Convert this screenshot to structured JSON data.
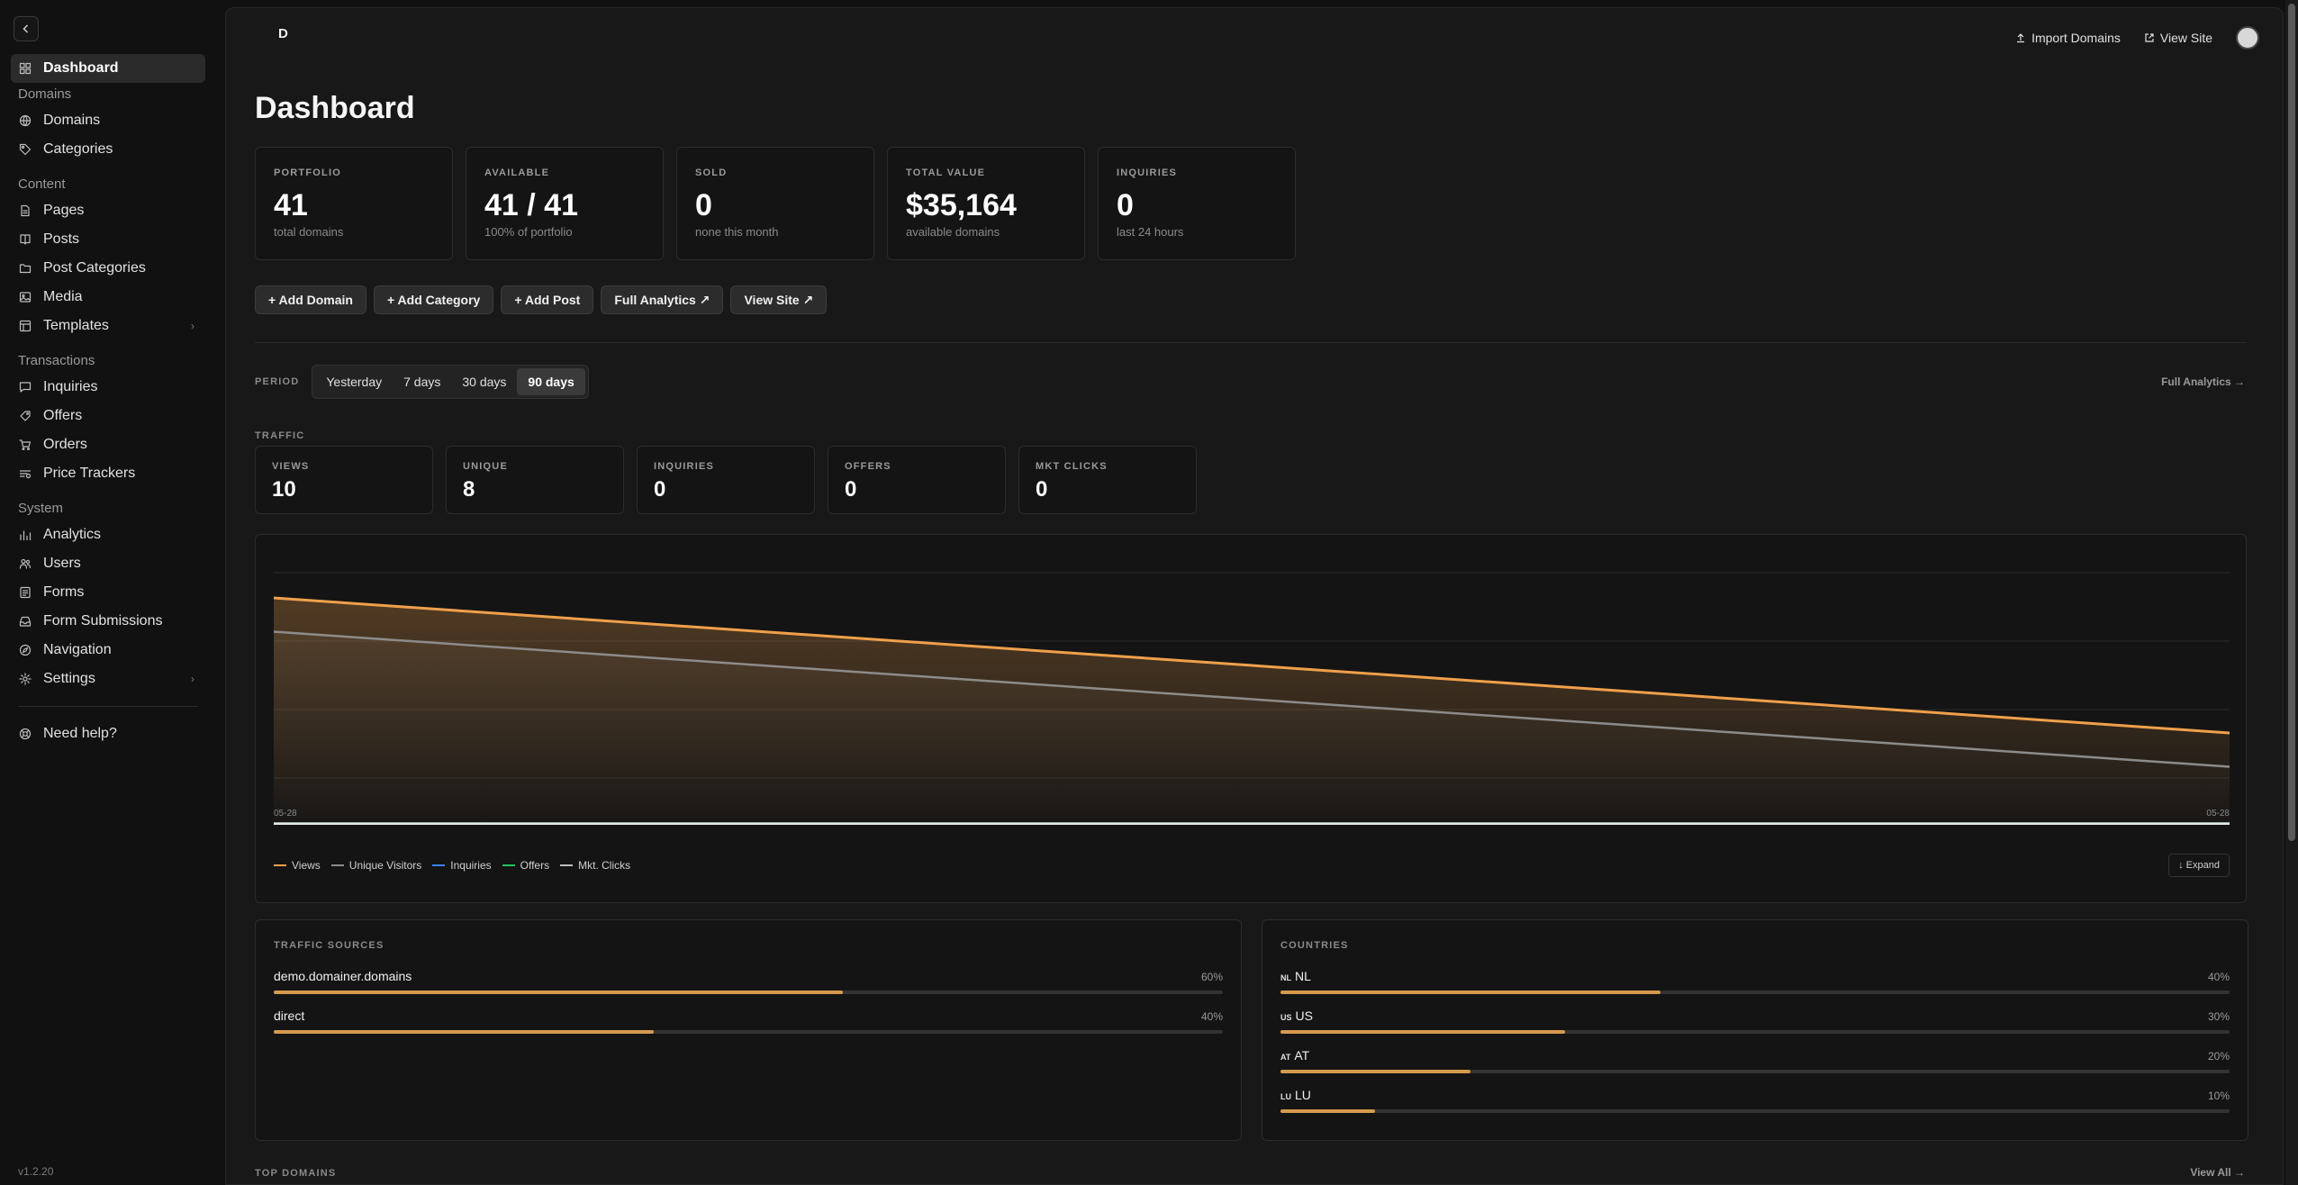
{
  "sidebar": {
    "items": [
      {
        "type": "item",
        "label": "Dashboard",
        "icon": "dashboard-icon",
        "active": true
      },
      {
        "type": "section",
        "label": "Domains"
      },
      {
        "type": "item",
        "label": "Domains",
        "icon": "globe-icon"
      },
      {
        "type": "item",
        "label": "Categories",
        "icon": "tag-icon"
      },
      {
        "type": "section",
        "label": "Content"
      },
      {
        "type": "item",
        "label": "Pages",
        "icon": "file-icon"
      },
      {
        "type": "item",
        "label": "Posts",
        "icon": "book-icon"
      },
      {
        "type": "item",
        "label": "Post Categories",
        "icon": "folder-icon"
      },
      {
        "type": "item",
        "label": "Media",
        "icon": "image-icon"
      },
      {
        "type": "item",
        "label": "Templates",
        "icon": "template-icon",
        "chevron": true
      },
      {
        "type": "section",
        "label": "Transactions"
      },
      {
        "type": "item",
        "label": "Inquiries",
        "icon": "message-icon"
      },
      {
        "type": "item",
        "label": "Offers",
        "icon": "offer-icon"
      },
      {
        "type": "item",
        "label": "Orders",
        "icon": "cart-icon"
      },
      {
        "type": "item",
        "label": "Price Trackers",
        "icon": "tracker-icon"
      },
      {
        "type": "section",
        "label": "System"
      },
      {
        "type": "item",
        "label": "Analytics",
        "icon": "chart-icon"
      },
      {
        "type": "item",
        "label": "Users",
        "icon": "users-icon"
      },
      {
        "type": "item",
        "label": "Forms",
        "icon": "form-icon"
      },
      {
        "type": "item",
        "label": "Form Submissions",
        "icon": "inbox-icon"
      },
      {
        "type": "item",
        "label": "Navigation",
        "icon": "compass-icon"
      },
      {
        "type": "item",
        "label": "Settings",
        "icon": "gear-icon",
        "chevron": true
      },
      {
        "type": "divider"
      },
      {
        "type": "item",
        "label": "Need help?",
        "icon": "help-icon"
      }
    ],
    "version": "v1.2.20"
  },
  "topbar": {
    "logo": "D",
    "import_label": "Import Domains",
    "view_site_label": "View Site"
  },
  "page_title": "Dashboard",
  "stats": [
    {
      "label": "PORTFOLIO",
      "value": "41",
      "sub": "total domains"
    },
    {
      "label": "AVAILABLE",
      "value": "41 / 41",
      "sub": "100% of portfolio"
    },
    {
      "label": "SOLD",
      "value": "0",
      "sub": "none this month"
    },
    {
      "label": "TOTAL VALUE",
      "value": "$35,164",
      "sub": "available domains"
    },
    {
      "label": "INQUIRIES",
      "value": "0",
      "sub": "last 24 hours"
    }
  ],
  "actions": [
    "+ Add Domain",
    "+ Add Category",
    "+ Add Post",
    "Full Analytics ↗",
    "View Site ↗"
  ],
  "period": {
    "label": "PERIOD",
    "options": [
      "Yesterday",
      "7 days",
      "30 days",
      "90 days"
    ],
    "selected": "90 days",
    "full_analytics_link": "Full Analytics →"
  },
  "traffic": {
    "label": "TRAFFIC",
    "cards": [
      {
        "label": "VIEWS",
        "value": "10"
      },
      {
        "label": "UNIQUE",
        "value": "8"
      },
      {
        "label": "INQUIRIES",
        "value": "0"
      },
      {
        "label": "OFFERS",
        "value": "0"
      },
      {
        "label": "MKT CLICKS",
        "value": "0"
      }
    ]
  },
  "chart_data": {
    "type": "area",
    "x": [
      "05-28",
      "05-28"
    ],
    "ylim": [
      0,
      12
    ],
    "grid": true,
    "legend_position": "bottom-left",
    "series": [
      {
        "name": "Views",
        "values": [
          10,
          4
        ],
        "color": "#f0a04b"
      },
      {
        "name": "Unique Visitors",
        "values": [
          8.5,
          2.5
        ],
        "color": "#8c8c8c"
      },
      {
        "name": "Inquiries",
        "values": [
          0,
          0
        ],
        "color": "#3b82f6"
      },
      {
        "name": "Offers",
        "values": [
          0,
          0
        ],
        "color": "#22c55e"
      },
      {
        "name": "Mkt. Clicks",
        "values": [
          0,
          0
        ],
        "color": "#bdbdbd"
      }
    ],
    "expand_label": "↓ Expand"
  },
  "traffic_sources": {
    "title": "TRAFFIC SOURCES",
    "rows": [
      {
        "name": "demo.domainer.domains",
        "pct_label": "60%",
        "value": 0.6
      },
      {
        "name": "direct",
        "pct_label": "40%",
        "value": 0.4
      }
    ]
  },
  "countries": {
    "title": "COUNTRIES",
    "rows": [
      {
        "code": "NL",
        "name": "NL",
        "pct_label": "40%",
        "value": 0.4
      },
      {
        "code": "US",
        "name": "US",
        "pct_label": "30%",
        "value": 0.3
      },
      {
        "code": "AT",
        "name": "AT",
        "pct_label": "20%",
        "value": 0.2
      },
      {
        "code": "LU",
        "name": "LU",
        "pct_label": "10%",
        "value": 0.1
      }
    ]
  },
  "top_domains": {
    "label": "TOP DOMAINS",
    "view_all": "View All →"
  },
  "colors": {
    "accent": "#f0a04b",
    "bar_fill": "#d69a4f"
  }
}
